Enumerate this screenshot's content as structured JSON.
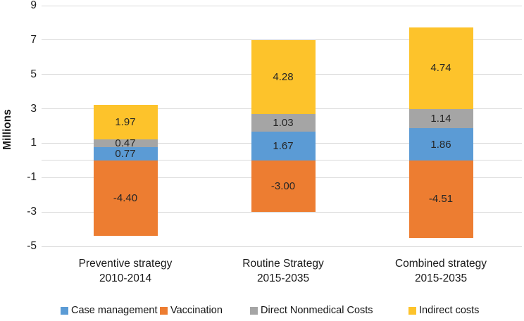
{
  "chart_data": {
    "type": "bar",
    "stacked": true,
    "title": "",
    "ylabel": "Millions",
    "xlabel": "",
    "categories": [
      "Preventive strategy\n2010-2014",
      "Routine Strategy\n2015-2035",
      "Combined strategy\n2015-2035"
    ],
    "series": [
      {
        "name": "Case management",
        "color": "#5B9BD5",
        "values": [
          0.77,
          1.67,
          1.86
        ]
      },
      {
        "name": "Vaccination",
        "color": "#ED7D31",
        "values": [
          -4.4,
          -3.0,
          -4.51
        ]
      },
      {
        "name": "Direct Nonmedical Costs",
        "color": "#A5A5A5",
        "values": [
          0.47,
          1.03,
          1.14
        ]
      },
      {
        "name": "Indirect costs",
        "color": "#FDC32B",
        "values": [
          1.97,
          4.28,
          4.74
        ]
      }
    ],
    "data_labels": [
      "0.77",
      "1.67",
      "1.86",
      "-4.40",
      "-3.00",
      "-4.51",
      "0.47",
      "1.03",
      "1.14",
      "1.97",
      "4.28",
      "4.74"
    ],
    "label_decimals": 2,
    "yticks": [
      9,
      7,
      5,
      3,
      1,
      -1,
      -3,
      -5
    ],
    "ylim": [
      -5,
      9
    ],
    "grid": true,
    "gridline_color": "#d9d9d9",
    "legend_position": "bottom"
  }
}
